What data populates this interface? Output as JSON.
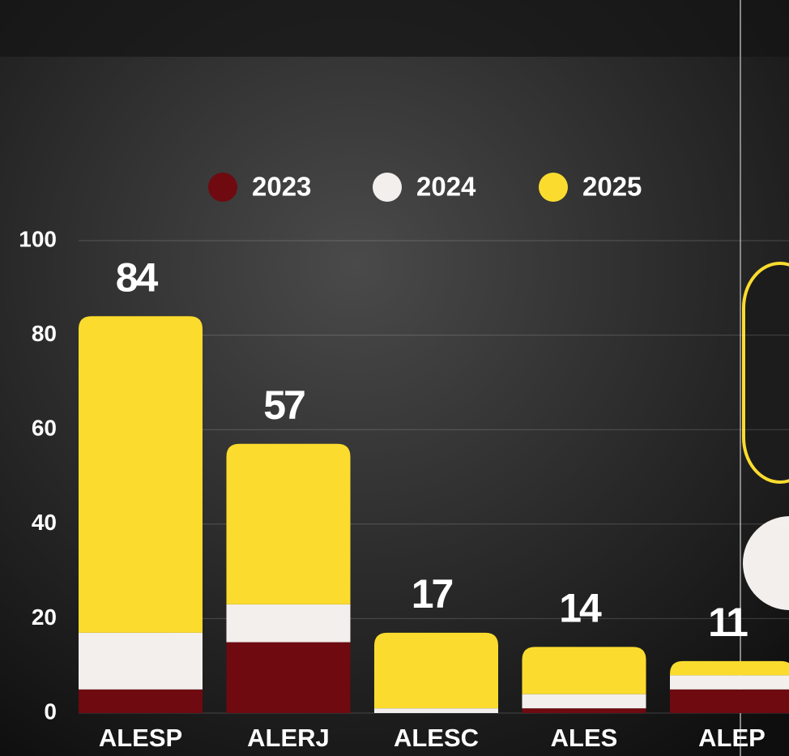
{
  "chart_data": {
    "type": "stacked_bar",
    "categories": [
      "ALESP",
      "ALERJ",
      "ALESC",
      "ALES",
      "ALEP"
    ],
    "series": [
      {
        "name": "2023",
        "color": "#6e0a10",
        "values": [
          5,
          15,
          0,
          1,
          5
        ]
      },
      {
        "name": "2024",
        "color": "#f2efec",
        "values": [
          12,
          8,
          1,
          3,
          3
        ]
      },
      {
        "name": "2025",
        "color": "#fbdc2e",
        "values": [
          67,
          34,
          16,
          10,
          3
        ]
      }
    ],
    "totals": [
      84,
      57,
      17,
      14,
      11
    ],
    "ylim": [
      0,
      100
    ],
    "yticks": [
      0,
      20,
      40,
      60,
      80,
      100
    ],
    "grid": true
  }
}
